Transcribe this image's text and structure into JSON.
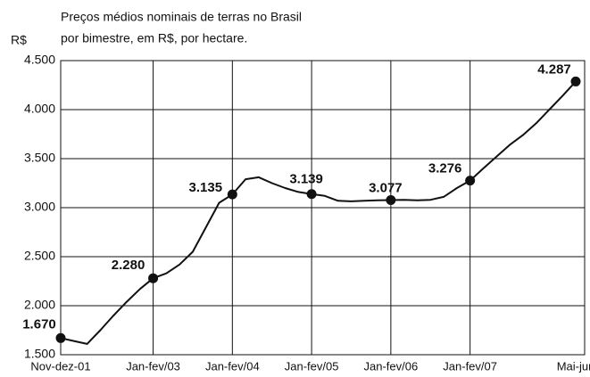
{
  "chart_data": {
    "type": "line",
    "title": "Preços médios nominais de terras no Brasil",
    "subtitle": "por bimestre, em R$, por hectare.",
    "y_label": "R$",
    "categories": [
      "Nov-dez-01",
      null,
      null,
      null,
      null,
      null,
      null,
      "Jan-fev/03",
      null,
      null,
      null,
      null,
      null,
      "Jan-fev/04",
      null,
      null,
      null,
      null,
      null,
      "Jan-fev/05",
      null,
      null,
      null,
      null,
      null,
      "Jan-fev/06",
      null,
      null,
      null,
      null,
      null,
      "Jan-fev/07",
      null,
      null,
      null,
      null,
      null,
      null,
      null,
      "Mai-jun"
    ],
    "values": [
      1670,
      1640,
      1610,
      1750,
      1900,
      2040,
      2170,
      2280,
      2330,
      2420,
      2550,
      2800,
      3050,
      3135,
      3290,
      3310,
      3250,
      3200,
      3160,
      3139,
      3120,
      3070,
      3065,
      3070,
      3075,
      3077,
      3080,
      3075,
      3080,
      3110,
      3200,
      3276,
      3400,
      3520,
      3640,
      3740,
      3860,
      4000,
      4140,
      4287
    ],
    "value_labels": [
      "1.670",
      null,
      null,
      null,
      null,
      null,
      null,
      "2.280",
      null,
      null,
      null,
      null,
      null,
      "3.135",
      null,
      null,
      null,
      null,
      null,
      "3.139",
      null,
      null,
      null,
      null,
      null,
      "3.077",
      null,
      null,
      null,
      null,
      null,
      "3.276",
      null,
      null,
      null,
      null,
      null,
      null,
      null,
      "4.287"
    ],
    "color": "#111111",
    "ylim": [
      1500,
      4500
    ],
    "yticks": [
      {
        "value": 1500,
        "label": "1.500"
      },
      {
        "value": 2000,
        "label": "2.000"
      },
      {
        "value": 2500,
        "label": "2.500"
      },
      {
        "value": 3000,
        "label": "3.000"
      },
      {
        "value": 3500,
        "label": "3.500"
      },
      {
        "value": 4000,
        "label": "4.000"
      },
      {
        "value": 4500,
        "label": "4.500"
      }
    ],
    "grid": true
  }
}
